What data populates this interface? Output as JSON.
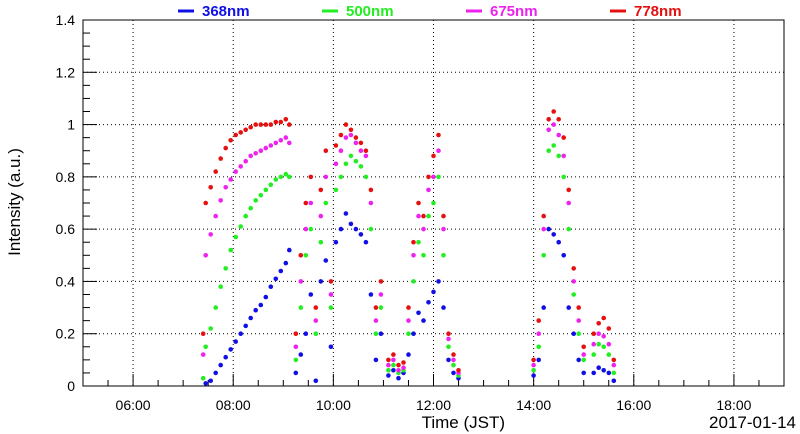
{
  "chart_data": {
    "type": "scatter",
    "title": "",
    "xlabel": "Time (JST)",
    "ylabel": "Intensity (a.u.)",
    "date_label": "2017-01-14",
    "x_unit": "time of day (hours, JST)",
    "xlim": [
      5.0,
      19.0
    ],
    "ylim": [
      0,
      1.4
    ],
    "x_ticks": [
      {
        "value": 6,
        "label": "06:00"
      },
      {
        "value": 8,
        "label": "08:00"
      },
      {
        "value": 10,
        "label": "10:00"
      },
      {
        "value": 12,
        "label": "12:00"
      },
      {
        "value": 14,
        "label": "14:00"
      },
      {
        "value": 16,
        "label": "16:00"
      },
      {
        "value": 18,
        "label": "18:00"
      }
    ],
    "y_ticks": [
      {
        "value": 0,
        "label": "0"
      },
      {
        "value": 0.2,
        "label": "0.2"
      },
      {
        "value": 0.4,
        "label": "0.4"
      },
      {
        "value": 0.6,
        "label": "0.6"
      },
      {
        "value": 0.8,
        "label": "0.8"
      },
      {
        "value": 1.0,
        "label": "1"
      },
      {
        "value": 1.2,
        "label": "1.2"
      },
      {
        "value": 1.4,
        "label": "1.4"
      }
    ],
    "grid": true,
    "legend_position": "top",
    "series": [
      {
        "name": "368nm",
        "color": "#1010e6",
        "points": [
          [
            7.45,
            0.01
          ],
          [
            7.55,
            0.02
          ],
          [
            7.65,
            0.05
          ],
          [
            7.75,
            0.08
          ],
          [
            7.85,
            0.11
          ],
          [
            7.95,
            0.14
          ],
          [
            8.05,
            0.17
          ],
          [
            8.15,
            0.2
          ],
          [
            8.25,
            0.23
          ],
          [
            8.35,
            0.26
          ],
          [
            8.45,
            0.29
          ],
          [
            8.55,
            0.31
          ],
          [
            8.65,
            0.34
          ],
          [
            8.75,
            0.38
          ],
          [
            8.85,
            0.41
          ],
          [
            8.95,
            0.44
          ],
          [
            9.05,
            0.47
          ],
          [
            9.12,
            0.52
          ],
          [
            9.25,
            0.05
          ],
          [
            9.35,
            0.12
          ],
          [
            9.45,
            0.2
          ],
          [
            9.55,
            0.35
          ],
          [
            9.65,
            0.02
          ],
          [
            9.75,
            0.4
          ],
          [
            9.85,
            0.48
          ],
          [
            9.95,
            0.15
          ],
          [
            10.05,
            0.55
          ],
          [
            10.15,
            0.6
          ],
          [
            10.25,
            0.66
          ],
          [
            10.35,
            0.62
          ],
          [
            10.45,
            0.6
          ],
          [
            10.55,
            0.58
          ],
          [
            10.65,
            0.55
          ],
          [
            10.75,
            0.35
          ],
          [
            10.85,
            0.1
          ],
          [
            10.95,
            0.2
          ],
          [
            11.1,
            0.04
          ],
          [
            11.2,
            0.06
          ],
          [
            11.3,
            0.03
          ],
          [
            11.4,
            0.05
          ],
          [
            11.5,
            0.12
          ],
          [
            11.6,
            0.2
          ],
          [
            11.7,
            0.28
          ],
          [
            11.8,
            0.25
          ],
          [
            11.9,
            0.32
          ],
          [
            12.0,
            0.36
          ],
          [
            12.1,
            0.4
          ],
          [
            12.2,
            0.3
          ],
          [
            12.3,
            0.1
          ],
          [
            12.4,
            0.05
          ],
          [
            12.5,
            0.03
          ],
          [
            14.0,
            0.04
          ],
          [
            14.1,
            0.1
          ],
          [
            14.2,
            0.3
          ],
          [
            14.3,
            0.6
          ],
          [
            14.4,
            0.58
          ],
          [
            14.5,
            0.55
          ],
          [
            14.6,
            0.5
          ],
          [
            14.7,
            0.3
          ],
          [
            14.8,
            0.2
          ],
          [
            14.9,
            0.1
          ],
          [
            15.0,
            0.05
          ],
          [
            15.2,
            0.05
          ],
          [
            15.3,
            0.07
          ],
          [
            15.4,
            0.06
          ],
          [
            15.5,
            0.05
          ],
          [
            15.6,
            0.02
          ]
        ]
      },
      {
        "name": "500nm",
        "color": "#22ee22",
        "points": [
          [
            7.4,
            0.03
          ],
          [
            7.45,
            0.15
          ],
          [
            7.55,
            0.22
          ],
          [
            7.65,
            0.3
          ],
          [
            7.75,
            0.38
          ],
          [
            7.85,
            0.45
          ],
          [
            7.95,
            0.52
          ],
          [
            8.05,
            0.57
          ],
          [
            8.15,
            0.61
          ],
          [
            8.25,
            0.65
          ],
          [
            8.35,
            0.68
          ],
          [
            8.45,
            0.71
          ],
          [
            8.55,
            0.73
          ],
          [
            8.65,
            0.75
          ],
          [
            8.75,
            0.77
          ],
          [
            8.85,
            0.79
          ],
          [
            8.95,
            0.8
          ],
          [
            9.05,
            0.81
          ],
          [
            9.12,
            0.8
          ],
          [
            9.25,
            0.1
          ],
          [
            9.35,
            0.3
          ],
          [
            9.45,
            0.5
          ],
          [
            9.55,
            0.6
          ],
          [
            9.65,
            0.2
          ],
          [
            9.75,
            0.55
          ],
          [
            9.85,
            0.7
          ],
          [
            9.95,
            0.3
          ],
          [
            10.05,
            0.75
          ],
          [
            10.15,
            0.8
          ],
          [
            10.25,
            0.85
          ],
          [
            10.35,
            0.88
          ],
          [
            10.45,
            0.86
          ],
          [
            10.55,
            0.84
          ],
          [
            10.65,
            0.8
          ],
          [
            10.75,
            0.6
          ],
          [
            10.85,
            0.2
          ],
          [
            10.95,
            0.3
          ],
          [
            11.1,
            0.06
          ],
          [
            11.2,
            0.08
          ],
          [
            11.3,
            0.05
          ],
          [
            11.4,
            0.06
          ],
          [
            11.5,
            0.2
          ],
          [
            11.6,
            0.4
          ],
          [
            11.7,
            0.55
          ],
          [
            11.8,
            0.5
          ],
          [
            11.9,
            0.65
          ],
          [
            12.0,
            0.7
          ],
          [
            12.1,
            0.8
          ],
          [
            12.2,
            0.5
          ],
          [
            12.3,
            0.15
          ],
          [
            12.4,
            0.08
          ],
          [
            12.5,
            0.04
          ],
          [
            14.0,
            0.06
          ],
          [
            14.1,
            0.15
          ],
          [
            14.2,
            0.5
          ],
          [
            14.3,
            0.9
          ],
          [
            14.4,
            0.92
          ],
          [
            14.5,
            0.88
          ],
          [
            14.6,
            0.8
          ],
          [
            14.7,
            0.6
          ],
          [
            14.8,
            0.35
          ],
          [
            14.9,
            0.2
          ],
          [
            15.0,
            0.1
          ],
          [
            15.2,
            0.12
          ],
          [
            15.3,
            0.16
          ],
          [
            15.4,
            0.15
          ],
          [
            15.5,
            0.12
          ],
          [
            15.6,
            0.05
          ]
        ]
      },
      {
        "name": "675nm",
        "color": "#ee22ee",
        "points": [
          [
            7.4,
            0.12
          ],
          [
            7.45,
            0.5
          ],
          [
            7.55,
            0.58
          ],
          [
            7.65,
            0.65
          ],
          [
            7.75,
            0.71
          ],
          [
            7.85,
            0.76
          ],
          [
            7.95,
            0.79
          ],
          [
            8.05,
            0.82
          ],
          [
            8.15,
            0.84
          ],
          [
            8.25,
            0.86
          ],
          [
            8.35,
            0.88
          ],
          [
            8.45,
            0.89
          ],
          [
            8.55,
            0.9
          ],
          [
            8.65,
            0.91
          ],
          [
            8.75,
            0.92
          ],
          [
            8.85,
            0.93
          ],
          [
            8.95,
            0.94
          ],
          [
            9.05,
            0.95
          ],
          [
            9.12,
            0.93
          ],
          [
            9.25,
            0.15
          ],
          [
            9.35,
            0.4
          ],
          [
            9.45,
            0.6
          ],
          [
            9.55,
            0.7
          ],
          [
            9.65,
            0.25
          ],
          [
            9.75,
            0.65
          ],
          [
            9.85,
            0.8
          ],
          [
            9.95,
            0.35
          ],
          [
            10.05,
            0.85
          ],
          [
            10.15,
            0.9
          ],
          [
            10.25,
            0.95
          ],
          [
            10.35,
            0.96
          ],
          [
            10.45,
            0.93
          ],
          [
            10.55,
            0.9
          ],
          [
            10.65,
            0.88
          ],
          [
            10.75,
            0.7
          ],
          [
            10.85,
            0.25
          ],
          [
            10.95,
            0.35
          ],
          [
            11.1,
            0.08
          ],
          [
            11.2,
            0.1
          ],
          [
            11.3,
            0.06
          ],
          [
            11.4,
            0.07
          ],
          [
            11.5,
            0.25
          ],
          [
            11.6,
            0.5
          ],
          [
            11.7,
            0.65
          ],
          [
            11.8,
            0.6
          ],
          [
            11.9,
            0.75
          ],
          [
            12.0,
            0.8
          ],
          [
            12.1,
            0.9
          ],
          [
            12.2,
            0.6
          ],
          [
            12.3,
            0.18
          ],
          [
            12.4,
            0.1
          ],
          [
            12.5,
            0.05
          ],
          [
            14.0,
            0.08
          ],
          [
            14.1,
            0.2
          ],
          [
            14.2,
            0.6
          ],
          [
            14.3,
            0.98
          ],
          [
            14.4,
            1.0
          ],
          [
            14.5,
            0.96
          ],
          [
            14.6,
            0.88
          ],
          [
            14.7,
            0.7
          ],
          [
            14.8,
            0.4
          ],
          [
            14.9,
            0.25
          ],
          [
            15.0,
            0.12
          ],
          [
            15.2,
            0.16
          ],
          [
            15.3,
            0.2
          ],
          [
            15.4,
            0.19
          ],
          [
            15.5,
            0.16
          ],
          [
            15.6,
            0.08
          ]
        ]
      },
      {
        "name": "778nm",
        "color": "#e61010",
        "points": [
          [
            7.4,
            0.2
          ],
          [
            7.45,
            0.7
          ],
          [
            7.55,
            0.76
          ],
          [
            7.65,
            0.82
          ],
          [
            7.75,
            0.87
          ],
          [
            7.85,
            0.91
          ],
          [
            7.95,
            0.94
          ],
          [
            8.05,
            0.96
          ],
          [
            8.15,
            0.97
          ],
          [
            8.25,
            0.98
          ],
          [
            8.35,
            0.99
          ],
          [
            8.45,
            1.0
          ],
          [
            8.55,
            1.0
          ],
          [
            8.65,
            1.0
          ],
          [
            8.75,
            1.0
          ],
          [
            8.85,
            1.01
          ],
          [
            8.95,
            1.01
          ],
          [
            9.05,
            1.02
          ],
          [
            9.12,
            1.0
          ],
          [
            9.25,
            0.2
          ],
          [
            9.35,
            0.5
          ],
          [
            9.45,
            0.7
          ],
          [
            9.55,
            0.8
          ],
          [
            9.65,
            0.3
          ],
          [
            9.75,
            0.75
          ],
          [
            9.85,
            0.9
          ],
          [
            9.95,
            0.4
          ],
          [
            10.05,
            0.92
          ],
          [
            10.15,
            0.96
          ],
          [
            10.25,
            1.0
          ],
          [
            10.35,
            0.98
          ],
          [
            10.45,
            0.95
          ],
          [
            10.55,
            0.93
          ],
          [
            10.65,
            0.9
          ],
          [
            10.75,
            0.75
          ],
          [
            10.85,
            0.3
          ],
          [
            10.95,
            0.4
          ],
          [
            11.1,
            0.1
          ],
          [
            11.2,
            0.12
          ],
          [
            11.3,
            0.08
          ],
          [
            11.4,
            0.09
          ],
          [
            11.5,
            0.3
          ],
          [
            11.6,
            0.55
          ],
          [
            11.7,
            0.7
          ],
          [
            11.8,
            0.65
          ],
          [
            11.9,
            0.8
          ],
          [
            12.0,
            0.88
          ],
          [
            12.1,
            0.96
          ],
          [
            12.2,
            0.65
          ],
          [
            12.3,
            0.2
          ],
          [
            12.4,
            0.12
          ],
          [
            12.5,
            0.06
          ],
          [
            14.0,
            0.1
          ],
          [
            14.1,
            0.25
          ],
          [
            14.2,
            0.65
          ],
          [
            14.3,
            1.02
          ],
          [
            14.4,
            1.05
          ],
          [
            14.5,
            1.02
          ],
          [
            14.6,
            0.95
          ],
          [
            14.7,
            0.75
          ],
          [
            14.8,
            0.45
          ],
          [
            14.9,
            0.3
          ],
          [
            15.0,
            0.15
          ],
          [
            15.2,
            0.2
          ],
          [
            15.3,
            0.24
          ],
          [
            15.4,
            0.26
          ],
          [
            15.5,
            0.22
          ],
          [
            15.6,
            0.1
          ]
        ]
      }
    ]
  }
}
